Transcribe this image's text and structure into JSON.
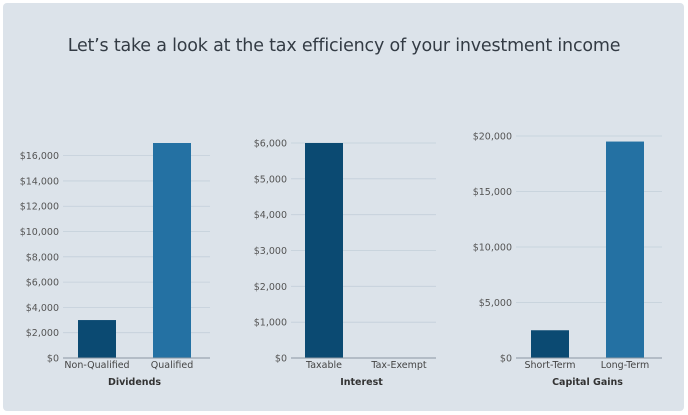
{
  "title": "Let’s take a look at the tax efficiency of your investment income",
  "colors": {
    "dark": "#0b4a72",
    "light": "#2471a3",
    "grid": "#c3cfd9",
    "axis": "#8a96a2"
  },
  "chart_data": [
    {
      "type": "bar",
      "xlabel": "Dividends",
      "categories": [
        "Non-Qualified",
        "Qualified"
      ],
      "values": [
        3000,
        17000
      ],
      "ylim": [
        0,
        17000
      ],
      "yticks": [
        0,
        2000,
        4000,
        6000,
        8000,
        10000,
        12000,
        14000,
        16000
      ],
      "ytick_labels": [
        "$0",
        "$2,000",
        "$4,000",
        "$6,000",
        "$8,000",
        "$10,000",
        "$12,000",
        "$14,000",
        "$16,000"
      ],
      "grid": true
    },
    {
      "type": "bar",
      "xlabel": "Interest",
      "categories": [
        "Taxable",
        "Tax-Exempt"
      ],
      "values": [
        6000,
        0
      ],
      "ylim": [
        0,
        6000
      ],
      "yticks": [
        0,
        1000,
        2000,
        3000,
        4000,
        5000,
        6000
      ],
      "ytick_labels": [
        "$0",
        "$1,000",
        "$2,000",
        "$3,000",
        "$4,000",
        "$5,000",
        "$6,000"
      ],
      "grid": true
    },
    {
      "type": "bar",
      "xlabel": "Capital Gains",
      "categories": [
        "Short-Term",
        "Long-Term"
      ],
      "values": [
        2500,
        19500
      ],
      "ylim": [
        0,
        20000
      ],
      "yticks": [
        0,
        5000,
        10000,
        15000,
        20000
      ],
      "ytick_labels": [
        "$0",
        "$5,000",
        "$10,000",
        "$15,000",
        "$20,000"
      ],
      "grid": true
    }
  ]
}
